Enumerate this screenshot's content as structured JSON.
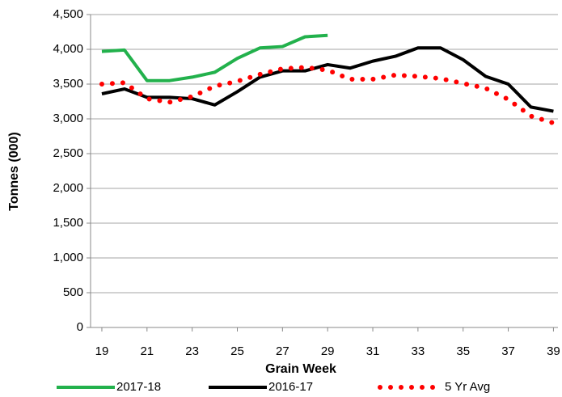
{
  "chart_data": {
    "type": "line",
    "xlabel": "Grain Week",
    "ylabel": "Tonnes (000)",
    "x": [
      19,
      20,
      21,
      22,
      23,
      24,
      25,
      26,
      27,
      28,
      29,
      30,
      31,
      32,
      33,
      34,
      35,
      36,
      37,
      38,
      39
    ],
    "xlim": [
      18.5,
      39.2
    ],
    "xticks": [
      19,
      21,
      23,
      25,
      27,
      29,
      31,
      33,
      35,
      37,
      39
    ],
    "ylim": [
      0,
      4500
    ],
    "yticks": [
      0,
      500,
      {
        "value": 1000,
        "label": "1,000"
      },
      {
        "value": 1500,
        "label": "1,500"
      },
      {
        "value": 2000,
        "label": "2,000"
      },
      {
        "value": 2500,
        "label": "2,500"
      },
      {
        "value": 3000,
        "label": "3,000"
      },
      {
        "value": 3500,
        "label": "3,500"
      },
      {
        "value": 4000,
        "label": "4,000"
      },
      {
        "value": 4500,
        "label": "4,500"
      }
    ],
    "grid": true,
    "legend": "bottom",
    "series": [
      {
        "name": "2017-18",
        "color": "#22b14c",
        "style": "solid",
        "values": [
          3970,
          3990,
          3550,
          3550,
          3600,
          3670,
          3870,
          4020,
          4040,
          4180,
          4200,
          null,
          null,
          null,
          null,
          null,
          null,
          null,
          null,
          null,
          null
        ]
      },
      {
        "name": "2016-17",
        "color": "#000000",
        "style": "solid",
        "values": [
          3360,
          3430,
          3310,
          3310,
          3290,
          3200,
          3390,
          3600,
          3690,
          3690,
          3780,
          3730,
          3830,
          3900,
          4020,
          4020,
          3850,
          3610,
          3500,
          3170,
          3110
        ]
      },
      {
        "name": "5 Yr Avg",
        "color": "#ff0000",
        "style": "dotted",
        "values": [
          3500,
          3520,
          3290,
          3240,
          3320,
          3470,
          3540,
          3640,
          3720,
          3740,
          3700,
          3570,
          3570,
          3630,
          3610,
          3580,
          3510,
          3440,
          3280,
          3040,
          2940
        ]
      }
    ]
  }
}
